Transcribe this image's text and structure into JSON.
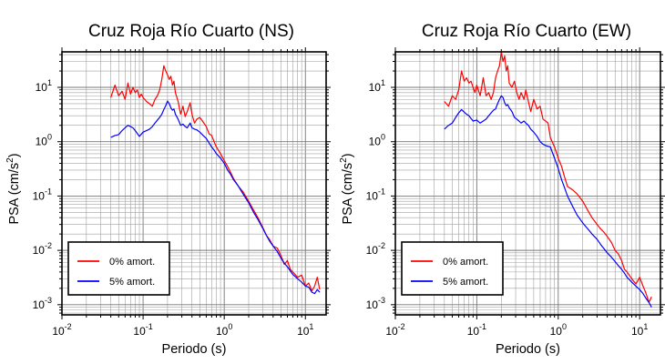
{
  "chart_data": [
    {
      "type": "line",
      "title": "Cruz Roja Río Cuarto (NS)",
      "xlabel": "Periodo (s)",
      "ylabel": "PSA (cm/s",
      "ylabel_sup": "2",
      "ylabel_suffix": ")",
      "x_scale": "log",
      "y_scale": "log",
      "xlim": [
        0.01,
        18
      ],
      "ylim": [
        0.00065,
        45
      ],
      "grid": true,
      "legend_position": "bottom-left",
      "x_ticks": [
        {
          "base": "10",
          "exp": "-2"
        },
        {
          "base": "10",
          "exp": "-1"
        },
        {
          "base": "10",
          "exp": "0"
        },
        {
          "base": "10",
          "exp": "1"
        }
      ],
      "y_ticks": [
        {
          "base": "10",
          "exp": "-3"
        },
        {
          "base": "10",
          "exp": "-2"
        },
        {
          "base": "10",
          "exp": "-1"
        },
        {
          "base": "10",
          "exp": "0"
        },
        {
          "base": "10",
          "exp": "1"
        }
      ],
      "series": [
        {
          "name": "0% amort.",
          "color": "#ff0000",
          "x": [
            0.04,
            0.045,
            0.05,
            0.055,
            0.06,
            0.065,
            0.07,
            0.075,
            0.08,
            0.085,
            0.09,
            0.095,
            0.1,
            0.11,
            0.12,
            0.13,
            0.14,
            0.15,
            0.16,
            0.17,
            0.18,
            0.19,
            0.2,
            0.21,
            0.22,
            0.23,
            0.24,
            0.25,
            0.27,
            0.29,
            0.31,
            0.33,
            0.35,
            0.38,
            0.4,
            0.43,
            0.46,
            0.5,
            0.55,
            0.6,
            0.65,
            0.7,
            0.75,
            0.8,
            0.9,
            1.0,
            1.1,
            1.2,
            1.3,
            1.5,
            1.7,
            2.0,
            2.3,
            2.6,
            3.0,
            3.3,
            3.6,
            4.0,
            4.5,
            5.0,
            5.5,
            6.0,
            6.5,
            7.0,
            8.0,
            9.0,
            10.0,
            11.0,
            12.0,
            13.0,
            14.0,
            15.0
          ],
          "y": [
            6.5,
            11,
            7,
            8.5,
            6,
            12,
            7.5,
            10,
            8,
            9,
            6.5,
            7.5,
            6.5,
            5.5,
            5,
            4.5,
            6,
            7,
            9,
            14,
            25,
            20,
            17,
            14,
            16,
            11,
            13,
            8,
            5.5,
            3.2,
            4.5,
            2.9,
            3.6,
            5.2,
            3.2,
            2.2,
            2.6,
            2.8,
            2.3,
            1.9,
            1.4,
            1.3,
            1.0,
            0.8,
            0.6,
            0.45,
            0.35,
            0.27,
            0.21,
            0.15,
            0.12,
            0.08,
            0.055,
            0.04,
            0.026,
            0.019,
            0.016,
            0.012,
            0.011,
            0.008,
            0.0055,
            0.0065,
            0.0045,
            0.004,
            0.0032,
            0.0035,
            0.0022,
            0.0025,
            0.0018,
            0.0022,
            0.0032,
            0.0019
          ]
        },
        {
          "name": "5% amort.",
          "color": "#0000ff",
          "x": [
            0.04,
            0.045,
            0.05,
            0.055,
            0.06,
            0.065,
            0.07,
            0.075,
            0.08,
            0.09,
            0.1,
            0.11,
            0.12,
            0.13,
            0.14,
            0.15,
            0.16,
            0.17,
            0.18,
            0.19,
            0.2,
            0.21,
            0.22,
            0.23,
            0.24,
            0.25,
            0.27,
            0.29,
            0.31,
            0.33,
            0.35,
            0.38,
            0.4,
            0.43,
            0.46,
            0.5,
            0.55,
            0.6,
            0.65,
            0.7,
            0.75,
            0.8,
            0.9,
            1.0,
            1.1,
            1.2,
            1.3,
            1.5,
            1.7,
            2.0,
            2.3,
            2.6,
            3.0,
            3.3,
            3.6,
            4.0,
            4.5,
            5.0,
            5.5,
            6.0,
            6.5,
            7.0,
            8.0,
            9.0,
            10.0,
            11.0,
            12.0,
            13.0,
            14.0,
            15.0
          ],
          "y": [
            1.2,
            1.3,
            1.35,
            1.6,
            1.8,
            2.0,
            1.9,
            1.8,
            1.6,
            1.25,
            1.5,
            1.6,
            1.7,
            1.9,
            2.2,
            2.5,
            2.8,
            3.2,
            3.9,
            4.6,
            5.6,
            5.0,
            4.2,
            3.8,
            4.0,
            3.2,
            2.6,
            2.0,
            2.1,
            1.9,
            1.8,
            2.2,
            1.8,
            1.7,
            1.65,
            1.5,
            1.3,
            1.15,
            0.95,
            0.8,
            0.7,
            0.6,
            0.5,
            0.4,
            0.3,
            0.25,
            0.2,
            0.15,
            0.11,
            0.075,
            0.05,
            0.037,
            0.025,
            0.019,
            0.015,
            0.012,
            0.0095,
            0.0072,
            0.0058,
            0.005,
            0.0042,
            0.0036,
            0.003,
            0.0026,
            0.0022,
            0.0021,
            0.0017,
            0.0016,
            0.0019,
            0.0017
          ]
        }
      ]
    },
    {
      "type": "line",
      "title": "Cruz Roja Río Cuarto (EW)",
      "xlabel": "Periodo (s)",
      "ylabel": "PSA (cm/s",
      "ylabel_sup": "2",
      "ylabel_suffix": ")",
      "x_scale": "log",
      "y_scale": "log",
      "xlim": [
        0.01,
        18
      ],
      "ylim": [
        0.00065,
        45
      ],
      "grid": true,
      "legend_position": "bottom-left",
      "x_ticks": [
        {
          "base": "10",
          "exp": "-2"
        },
        {
          "base": "10",
          "exp": "-1"
        },
        {
          "base": "10",
          "exp": "0"
        },
        {
          "base": "10",
          "exp": "1"
        }
      ],
      "y_ticks": [
        {
          "base": "10",
          "exp": "-3"
        },
        {
          "base": "10",
          "exp": "-2"
        },
        {
          "base": "10",
          "exp": "-1"
        },
        {
          "base": "10",
          "exp": "0"
        },
        {
          "base": "10",
          "exp": "1"
        }
      ],
      "series": [
        {
          "name": "0% amort.",
          "color": "#ff0000",
          "x": [
            0.04,
            0.045,
            0.05,
            0.055,
            0.06,
            0.065,
            0.07,
            0.075,
            0.08,
            0.085,
            0.09,
            0.095,
            0.1,
            0.11,
            0.12,
            0.13,
            0.14,
            0.15,
            0.16,
            0.17,
            0.18,
            0.19,
            0.2,
            0.21,
            0.22,
            0.23,
            0.24,
            0.25,
            0.27,
            0.29,
            0.31,
            0.33,
            0.35,
            0.38,
            0.4,
            0.43,
            0.46,
            0.5,
            0.55,
            0.6,
            0.65,
            0.7,
            0.75,
            0.8,
            0.9,
            1.0,
            1.1,
            1.2,
            1.3,
            1.5,
            1.7,
            2.0,
            2.3,
            2.6,
            3.0,
            3.3,
            3.6,
            4.0,
            4.5,
            5.0,
            5.5,
            6.0,
            6.5,
            7.0,
            8.0,
            9.0,
            10.0,
            11.0,
            12.0,
            13.0,
            14.0
          ],
          "y": [
            5.5,
            4.5,
            7,
            6,
            9,
            20,
            13,
            15,
            12,
            13,
            10,
            8,
            11,
            7,
            15,
            7,
            8,
            6,
            8,
            15,
            20,
            25,
            45,
            30,
            38,
            20,
            25,
            12,
            10,
            13,
            8,
            6,
            8,
            6,
            9,
            5.5,
            3.6,
            6,
            4,
            4.5,
            2.6,
            2.4,
            2.2,
            1.2,
            0.8,
            0.5,
            0.35,
            0.22,
            0.15,
            0.13,
            0.11,
            0.08,
            0.055,
            0.04,
            0.03,
            0.025,
            0.022,
            0.018,
            0.014,
            0.01,
            0.0085,
            0.0065,
            0.0045,
            0.004,
            0.003,
            0.0024,
            0.0032,
            0.0022,
            0.0016,
            0.0011,
            0.0014
          ]
        },
        {
          "name": "5% amort.",
          "color": "#0000ff",
          "x": [
            0.04,
            0.045,
            0.05,
            0.055,
            0.06,
            0.065,
            0.07,
            0.075,
            0.08,
            0.09,
            0.1,
            0.11,
            0.12,
            0.13,
            0.14,
            0.15,
            0.16,
            0.17,
            0.18,
            0.19,
            0.2,
            0.21,
            0.22,
            0.23,
            0.24,
            0.25,
            0.27,
            0.29,
            0.31,
            0.33,
            0.35,
            0.38,
            0.4,
            0.43,
            0.46,
            0.5,
            0.55,
            0.6,
            0.65,
            0.7,
            0.75,
            0.8,
            0.9,
            1.0,
            1.1,
            1.2,
            1.3,
            1.5,
            1.7,
            2.0,
            2.3,
            2.6,
            3.0,
            3.3,
            3.6,
            4.0,
            4.5,
            5.0,
            5.5,
            6.0,
            6.5,
            7.0,
            8.0,
            9.0,
            10.0,
            11.0,
            12.0,
            13.0,
            14.0
          ],
          "y": [
            1.7,
            2.0,
            2.2,
            2.8,
            3.4,
            3.9,
            3.5,
            3.2,
            3.0,
            2.4,
            2.5,
            2.2,
            2.4,
            2.6,
            3.0,
            3.4,
            3.8,
            4.0,
            5.0,
            6.0,
            7.0,
            6.5,
            5.2,
            4.6,
            4.8,
            4.2,
            3.6,
            2.8,
            2.6,
            2.4,
            2.2,
            2.4,
            2.2,
            2.0,
            1.7,
            1.5,
            1.25,
            1.0,
            0.9,
            0.85,
            0.82,
            0.8,
            0.5,
            0.32,
            0.2,
            0.14,
            0.1,
            0.065,
            0.045,
            0.032,
            0.025,
            0.02,
            0.016,
            0.013,
            0.011,
            0.009,
            0.0075,
            0.0062,
            0.0052,
            0.0045,
            0.0038,
            0.0032,
            0.0026,
            0.0022,
            0.0019,
            0.0016,
            0.0013,
            0.0011,
            0.0009
          ]
        }
      ]
    }
  ]
}
